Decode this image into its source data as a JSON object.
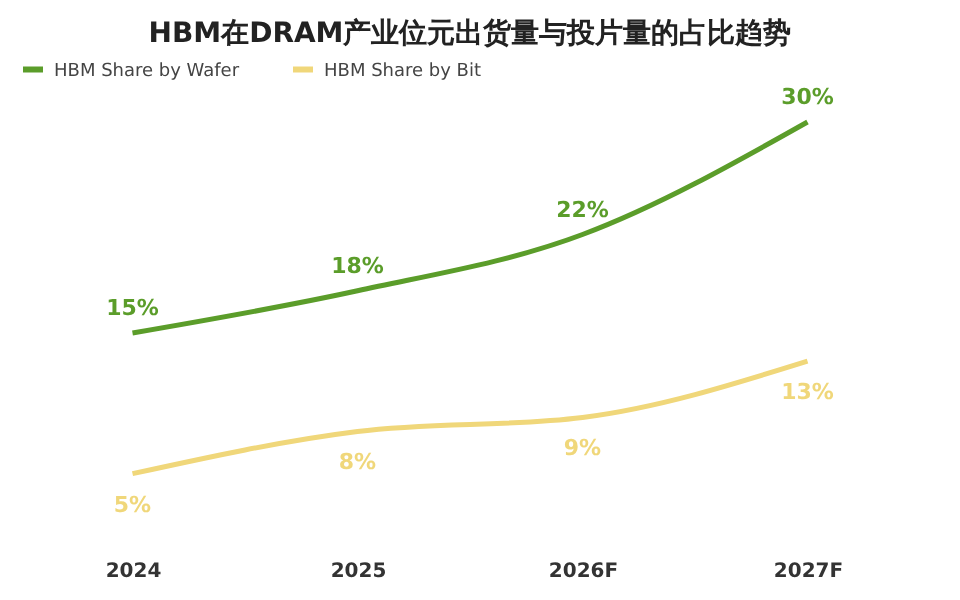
{
  "chart_data": {
    "type": "line",
    "title": "HBM在DRAM产业位元出货量与投片量的占比趋势",
    "categories": [
      "2024",
      "2025",
      "2026F",
      "2027F"
    ],
    "series": [
      {
        "name": "HBM Share by Wafer",
        "color": "#5b9d2a",
        "values": [
          15,
          18,
          22,
          30
        ],
        "value_labels": [
          "15%",
          "18%",
          "22%",
          "30%"
        ]
      },
      {
        "name": "HBM Share by Bit",
        "color": "#f0d77a",
        "values": [
          5,
          8,
          9,
          13
        ],
        "value_labels": [
          "5%",
          "8%",
          "9%",
          "13%"
        ]
      }
    ],
    "legend": "top",
    "grid": false,
    "marker": "none",
    "line_style": "solid",
    "tick_labels": "x"
  }
}
